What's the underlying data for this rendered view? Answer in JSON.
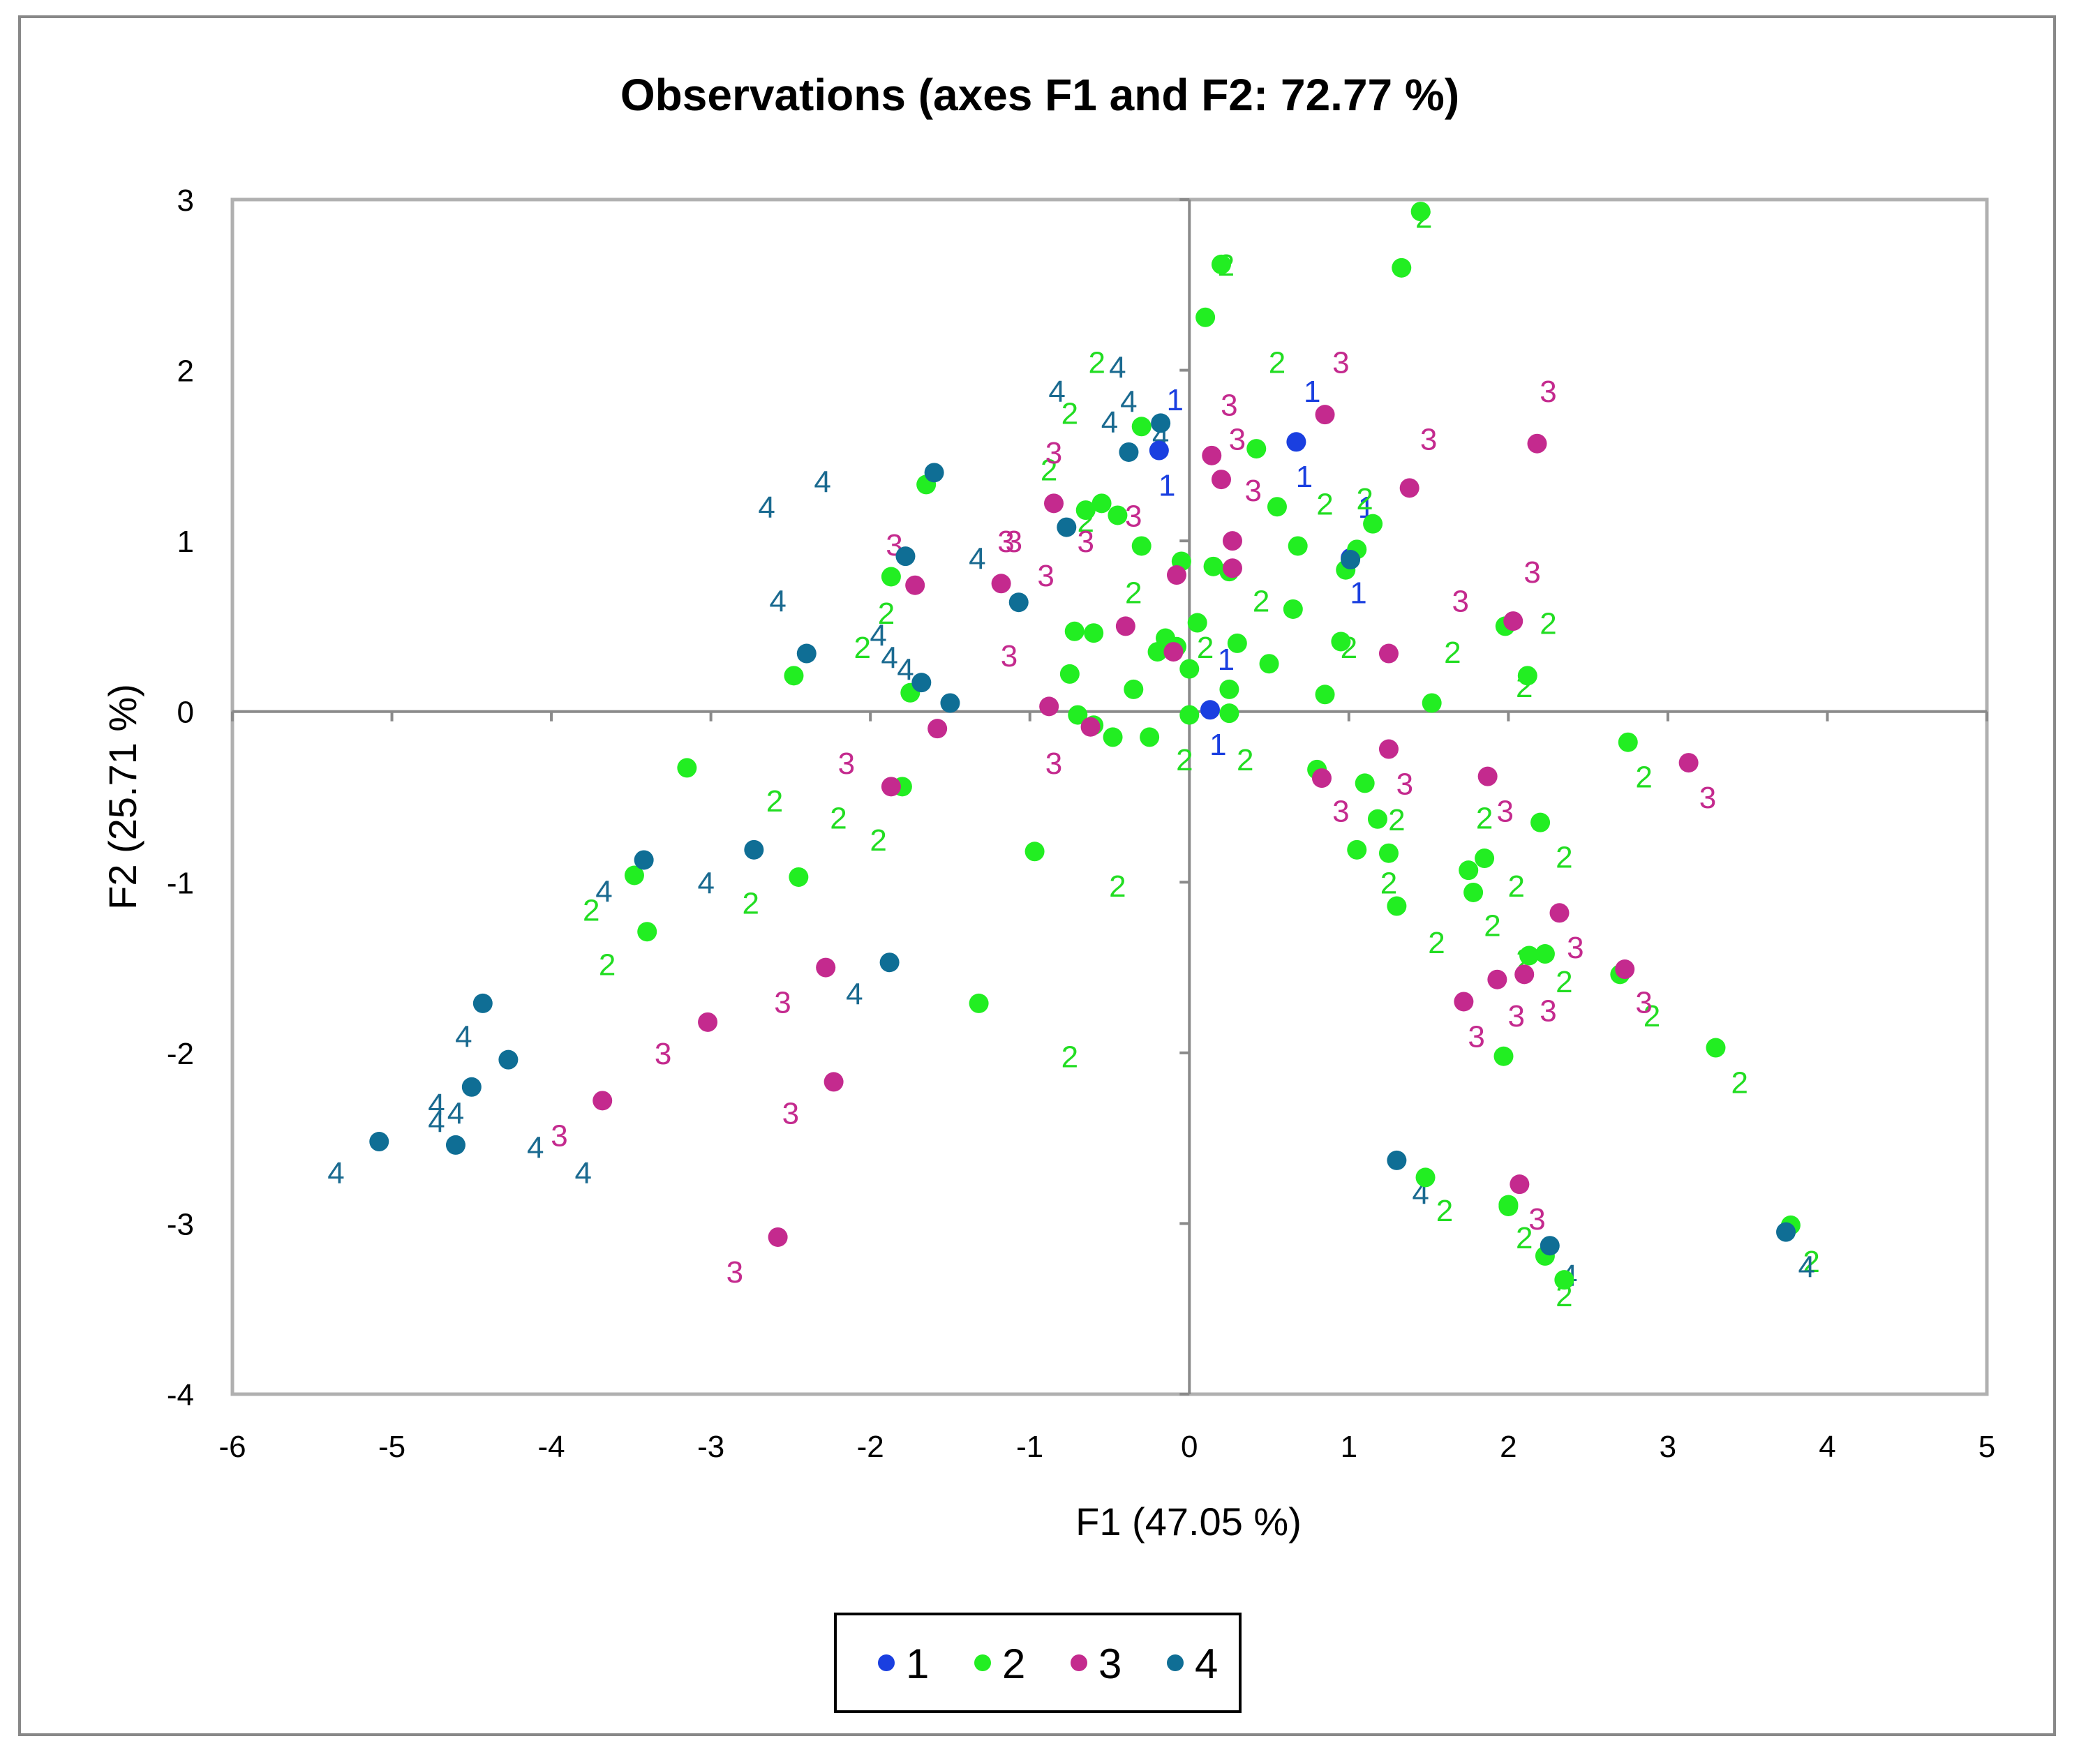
{
  "chart_data": {
    "type": "scatter",
    "title": "Observations (axes F1 and F2: 72.77 %)",
    "xlabel": "F1 (47.05 %)",
    "ylabel": "F2 (25.71 %)",
    "xlim": [
      -6,
      5
    ],
    "ylim": [
      -4,
      3
    ],
    "xticks": [
      -6,
      -5,
      -4,
      -3,
      -2,
      -1,
      0,
      1,
      2,
      3,
      4,
      5
    ],
    "yticks": [
      -4,
      -3,
      -2,
      -1,
      0,
      1,
      2,
      3
    ],
    "grid": false,
    "legend_position": "bottom",
    "series": [
      {
        "name": "1",
        "color": "#1a3fe0",
        "label_color": "#1a3fe0",
        "x": [
          0.67,
          -0.19,
          0.13,
          1.01
        ],
        "y": [
          1.58,
          1.53,
          0.01,
          0.9
        ]
      },
      {
        "name": "2",
        "color": "#22ee22",
        "label_color": "#22dd22",
        "x": [
          1.45,
          0.2,
          1.33,
          0.1,
          0.42,
          0.55,
          0.68,
          0.98,
          1.05,
          1.15,
          0.25,
          0.15,
          -0.05,
          0.05,
          0.3,
          0.5,
          0.65,
          -0.3,
          -0.55,
          -0.65,
          -0.72,
          -0.45,
          -0.15,
          -0.3,
          -0.2,
          -0.35,
          -0.6,
          -0.7,
          -0.75,
          -0.6,
          -0.48,
          -0.25,
          -0.08,
          0.0,
          0.25,
          -1.65,
          -1.87,
          -1.75,
          -2.48,
          -3.15,
          -3.48,
          -3.4,
          -2.45,
          -1.8,
          -0.97,
          -1.32,
          0.8,
          1.1,
          1.18,
          1.05,
          1.3,
          1.25,
          1.75,
          1.85,
          1.78,
          1.98,
          2.12,
          2.2,
          2.23,
          2.7,
          2.75,
          1.97,
          2.0,
          2.13,
          1.52,
          0.85,
          3.3,
          3.77,
          1.48,
          2.0,
          2.23,
          2.35,
          0.25,
          0.0,
          0.95
        ],
        "y": [
          2.93,
          2.62,
          2.6,
          2.31,
          1.54,
          1.2,
          0.97,
          0.83,
          0.95,
          1.1,
          0.82,
          0.85,
          0.88,
          0.52,
          0.4,
          0.28,
          0.6,
          1.67,
          1.22,
          1.18,
          0.47,
          1.15,
          0.43,
          0.97,
          0.35,
          0.13,
          0.46,
          -0.02,
          0.22,
          -0.08,
          -0.15,
          -0.15,
          0.38,
          0.25,
          0.13,
          1.33,
          0.79,
          0.11,
          0.21,
          -0.33,
          -0.96,
          -1.29,
          -0.97,
          -0.44,
          -0.82,
          -1.71,
          -0.34,
          -0.42,
          -0.63,
          -0.81,
          -1.14,
          -0.83,
          -0.93,
          -0.86,
          -1.06,
          0.5,
          0.21,
          -0.65,
          -1.42,
          -1.54,
          -0.18,
          -2.02,
          -2.9,
          -1.43,
          0.05,
          0.1,
          -1.97,
          -3.01,
          -2.73,
          -2.89,
          -3.19,
          -3.33,
          -0.01,
          -0.02,
          0.41
        ],
        "labels_x": [
          1.47,
          0.23,
          0.1,
          0.55,
          0.85,
          1.0,
          1.1,
          -0.58,
          -0.75,
          -0.88,
          -0.65,
          -0.35,
          0.45,
          1.65,
          2.25,
          2.1,
          -1.9,
          -2.05,
          -2.75,
          -3.75,
          -3.65,
          -2.6,
          -2.2,
          -1.95,
          -0.45,
          -0.75,
          1.3,
          1.25,
          1.55,
          2.05,
          1.9,
          2.35,
          2.9,
          2.85,
          1.85,
          2.1,
          3.45,
          1.6,
          2.35,
          2.1,
          3.9,
          2.35,
          0.35,
          -0.03
        ],
        "labels_y": [
          2.9,
          2.62,
          0.38,
          2.05,
          1.22,
          0.38,
          1.25,
          2.05,
          1.75,
          1.42,
          1.12,
          0.7,
          0.65,
          0.35,
          0.52,
          0.15,
          0.58,
          0.38,
          -1.12,
          -1.16,
          -1.48,
          -0.52,
          -0.62,
          -0.75,
          -1.02,
          -2.02,
          -0.63,
          -1.0,
          -1.35,
          -1.02,
          -1.25,
          -0.85,
          -1.78,
          -0.38,
          -0.62,
          -1.45,
          -2.17,
          -2.92,
          -1.58,
          -3.08,
          -3.22,
          -3.42,
          -0.28,
          -0.28
        ],
        "labels_x_note": "",
        "labels_text": "2"
      },
      {
        "name": "3",
        "color": "#c42a8e",
        "label_color": "#c42a8e",
        "x": [
          0.85,
          2.18,
          1.38,
          0.14,
          0.2,
          0.27,
          -0.08,
          -1.18,
          -0.85,
          -1.72,
          -0.4,
          -0.1,
          -0.88,
          -0.62,
          -1.58,
          -1.87,
          -2.28,
          -3.02,
          -3.68,
          -2.23,
          -2.58,
          0.83,
          1.25,
          1.87,
          2.32,
          2.73,
          3.13,
          1.93,
          2.1,
          1.72,
          2.07,
          1.25,
          2.03,
          0.27
        ],
        "y": [
          1.74,
          1.57,
          1.31,
          1.5,
          1.36,
          1.0,
          0.8,
          0.75,
          1.22,
          0.74,
          0.5,
          0.35,
          0.03,
          -0.09,
          -0.1,
          -0.44,
          -1.5,
          -1.82,
          -2.28,
          -2.17,
          -3.08,
          -0.39,
          -0.22,
          -0.38,
          -1.18,
          -1.51,
          -0.3,
          -1.57,
          -1.54,
          -1.7,
          -2.77,
          0.34,
          0.53,
          0.84
        ],
        "labels_text": "3",
        "labels_x": [
          0.95,
          2.25,
          1.5,
          0.25,
          0.4,
          0.3,
          -1.1,
          -0.65,
          -0.35,
          -0.85,
          -1.15,
          -0.9,
          -1.13,
          -0.85,
          -1.85,
          -2.15,
          -2.55,
          -3.3,
          -3.95,
          -2.5,
          -2.85,
          0.95,
          1.35,
          1.98,
          2.42,
          2.85,
          3.25,
          2.05,
          2.25,
          1.8,
          2.18,
          1.7,
          2.15
        ],
        "labels_y": [
          2.05,
          1.88,
          1.6,
          1.8,
          1.3,
          1.6,
          1.0,
          1.0,
          1.15,
          1.52,
          1.0,
          0.8,
          0.33,
          -0.3,
          0.98,
          -0.3,
          -1.7,
          -2.0,
          -2.48,
          -2.35,
          -3.28,
          -0.58,
          -0.42,
          -0.58,
          -1.38,
          -1.7,
          -0.5,
          -1.78,
          -1.75,
          -1.9,
          -2.97,
          0.65,
          0.82
        ]
      },
      {
        "name": "4",
        "color": "#0f6e95",
        "label_color": "#1a6a90",
        "x": [
          -1.6,
          -0.77,
          -0.38,
          -0.18,
          -1.78,
          -1.07,
          -2.4,
          -1.68,
          -1.5,
          -2.73,
          -3.42,
          -1.88,
          -4.43,
          -4.27,
          -4.5,
          -5.08,
          -4.6,
          1.3,
          2.26,
          3.74,
          1.01
        ],
        "y": [
          1.4,
          1.08,
          1.52,
          1.69,
          0.91,
          0.64,
          0.34,
          0.17,
          0.05,
          -0.81,
          -0.87,
          -1.47,
          -1.71,
          -2.04,
          -2.2,
          -2.52,
          -2.54,
          -2.63,
          -3.13,
          -3.05,
          0.89
        ],
        "labels_text": "4",
        "labels_x": [
          -0.83,
          -0.45,
          -0.38,
          -0.18,
          -1.88,
          -1.33,
          -2.58,
          -1.78,
          -1.95,
          -3.03,
          -3.67,
          -2.1,
          -4.55,
          -4.72,
          -4.6,
          -5.35,
          -4.72,
          1.45,
          2.38,
          3.87,
          -0.5,
          -2.65,
          -2.3,
          -3.8,
          -4.1
        ],
        "labels_y": [
          1.88,
          2.02,
          1.82,
          1.62,
          0.32,
          0.9,
          0.65,
          0.25,
          0.45,
          -1.0,
          -1.05,
          -1.65,
          -1.9,
          -2.3,
          -2.35,
          -2.7,
          -2.4,
          -2.82,
          -3.3,
          -3.25,
          1.7,
          1.2,
          1.35,
          -2.7,
          -2.55
        ]
      }
    ]
  }
}
